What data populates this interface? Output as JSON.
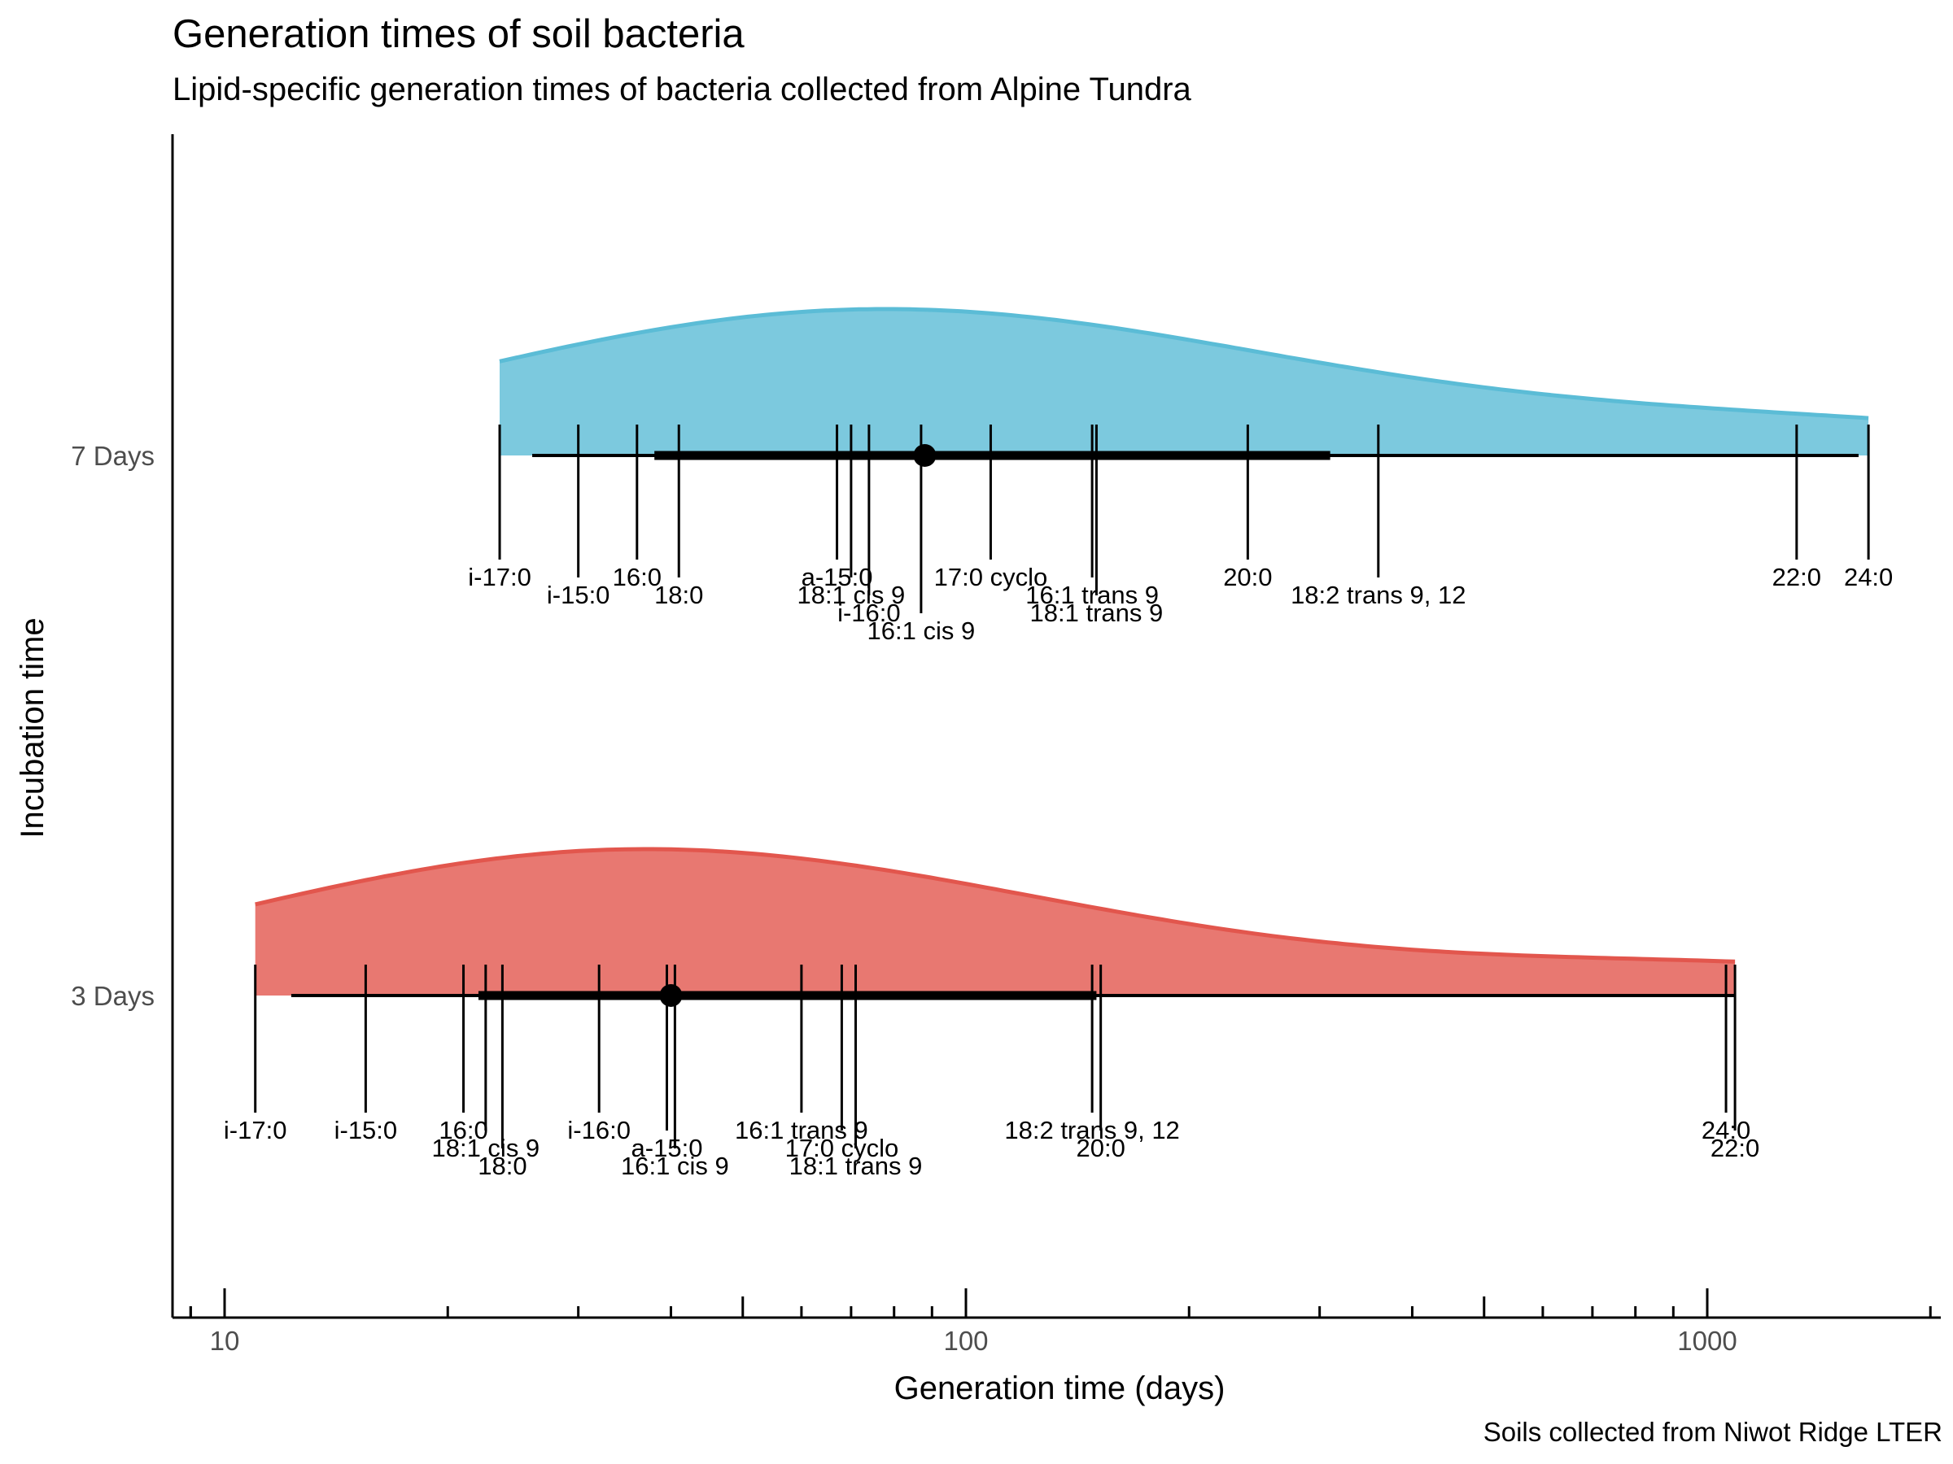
{
  "chart_data": {
    "type": "raincloud",
    "title": "Generation times of soil bacteria",
    "subtitle": "Lipid-specific generation times of bacteria collected from Alpine Tundra",
    "caption": "Soils collected from Niwot Ridge LTER",
    "xlabel": "Generation time (days)",
    "ylabel": "Incubation time",
    "x_scale": "log10",
    "xlim": [
      8.5,
      2000
    ],
    "x_ticks": [
      10,
      100,
      1000
    ],
    "x_tick_labels": [
      "10",
      "100",
      "1000"
    ],
    "categories": [
      "7 Days",
      "3 Days"
    ],
    "series": [
      {
        "name": "7 Days",
        "color": "#5bbcd6",
        "interval_inner": [
          38,
          310
        ],
        "interval_outer": [
          26,
          1600
        ],
        "median": 88,
        "points": [
          {
            "label": "i-17:0",
            "x": 23.5
          },
          {
            "label": "i-15:0",
            "x": 30
          },
          {
            "label": "16:0",
            "x": 36
          },
          {
            "label": "18:0",
            "x": 41
          },
          {
            "label": "a-15:0",
            "x": 67
          },
          {
            "label": "18:1 cis 9",
            "x": 70
          },
          {
            "label": "i-16:0",
            "x": 74
          },
          {
            "label": "16:1 cis 9",
            "x": 87
          },
          {
            "label": "17:0 cyclo",
            "x": 108
          },
          {
            "label": "16:1 trans 9",
            "x": 148
          },
          {
            "label": "18:1 trans 9",
            "x": 150
          },
          {
            "label": "20:0",
            "x": 240
          },
          {
            "label": "18:2 trans 9, 12",
            "x": 360
          },
          {
            "label": "22:0",
            "x": 1320
          },
          {
            "label": "24:0",
            "x": 1650
          }
        ]
      },
      {
        "name": "3 Days",
        "color": "#e2564d",
        "interval_inner": [
          22,
          150
        ],
        "interval_outer": [
          12.3,
          1090
        ],
        "median": 40,
        "points": [
          {
            "label": "i-17:0",
            "x": 11
          },
          {
            "label": "i-15:0",
            "x": 15.5
          },
          {
            "label": "16:0",
            "x": 21
          },
          {
            "label": "18:1 cis 9",
            "x": 22.5
          },
          {
            "label": "18:0",
            "x": 23.7
          },
          {
            "label": "i-16:0",
            "x": 32
          },
          {
            "label": "a-15:0",
            "x": 39.5
          },
          {
            "label": "16:1 cis 9",
            "x": 40.5
          },
          {
            "label": "16:1 trans 9",
            "x": 60
          },
          {
            "label": "17:0 cyclo",
            "x": 68
          },
          {
            "label": "18:1 trans 9",
            "x": 71
          },
          {
            "label": "18:2 trans 9, 12",
            "x": 148
          },
          {
            "label": "20:0",
            "x": 152
          },
          {
            "label": "24:0",
            "x": 1060
          },
          {
            "label": "22:0",
            "x": 1090
          }
        ]
      }
    ]
  }
}
